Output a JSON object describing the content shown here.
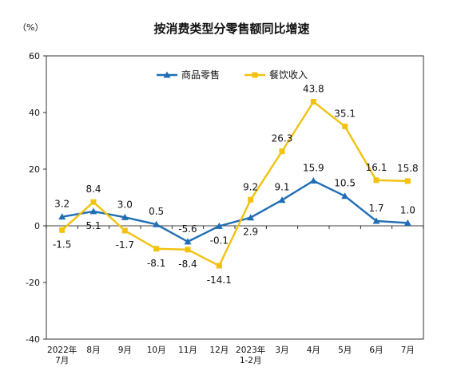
{
  "chart_data": {
    "type": "line",
    "title": "按消费类型分零售额同比增速",
    "unit_label": "（%）",
    "categories": [
      [
        "2022年",
        "7月"
      ],
      [
        "8月"
      ],
      [
        "9月"
      ],
      [
        "10月"
      ],
      [
        "11月"
      ],
      [
        "12月"
      ],
      [
        "2023年",
        "1-2月"
      ],
      [
        "3月"
      ],
      [
        "4月"
      ],
      [
        "5月"
      ],
      [
        "6月"
      ],
      [
        "7月"
      ]
    ],
    "series": [
      {
        "name": "商品零售",
        "color": "#1f6db5",
        "marker": "triangle",
        "values": [
          3.2,
          5.1,
          3.0,
          0.5,
          -5.6,
          -0.1,
          2.9,
          9.1,
          15.9,
          10.5,
          1.7,
          1.0
        ],
        "labels": [
          "3.2",
          "5.1",
          "3.0",
          "0.5",
          "-5.6",
          "-0.1",
          "2.9",
          "9.1",
          "15.9",
          "10.5",
          "1.7",
          "1.0"
        ]
      },
      {
        "name": "餐饮收入",
        "color": "#f2c20f",
        "marker": "square",
        "values": [
          -1.5,
          8.4,
          -1.7,
          -8.1,
          -8.4,
          -14.1,
          9.2,
          26.3,
          43.8,
          35.1,
          16.1,
          15.8
        ],
        "labels": [
          "-1.5",
          "8.4",
          "-1.7",
          "-8.1",
          "-8.4",
          "-14.1",
          "9.2",
          "26.3",
          "43.8",
          "35.1",
          "16.1",
          "15.8"
        ]
      }
    ],
    "ylim": [
      -40,
      60
    ],
    "yticks": [
      -40,
      -20,
      0,
      20,
      40,
      60
    ],
    "ytick_labels": [
      "-40",
      "-20",
      "0",
      "20",
      "40",
      "60"
    ],
    "grid": false,
    "legend_position": "top-center"
  }
}
